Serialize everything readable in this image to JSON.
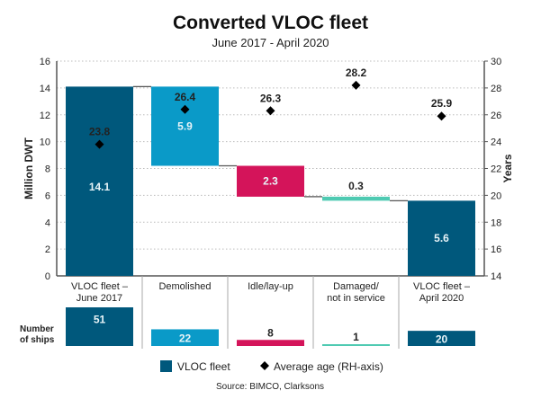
{
  "chart_data": {
    "type": "waterfall",
    "title": "Converted VLOC fleet",
    "subtitle": "June 2017 - April 2020",
    "categories": [
      "VLOC fleet –\nJune 2017",
      "Demolished",
      "Idle/lay-up",
      "Damaged/\nnot in service",
      "VLOC fleet –\nApril 2020"
    ],
    "series": [
      {
        "name": "VLOC fleet",
        "axis": "left",
        "unit": "Million DWT",
        "values": [
          14.1,
          -5.9,
          -2.3,
          -0.3,
          5.6
        ],
        "labels": [
          "14.1",
          "5.9",
          "2.3",
          "0.3",
          "5.6"
        ],
        "colors": [
          "#00587c",
          "#0a9ac8",
          "#d4145a",
          "#4fcab2",
          "#00587c"
        ]
      },
      {
        "name": "Average age (RH-axis)",
        "axis": "right",
        "unit": "Years",
        "values": [
          23.8,
          26.4,
          26.3,
          28.2,
          25.9
        ],
        "labels": [
          "23.8",
          "26.4",
          "26.3",
          "28.2",
          "25.9"
        ]
      }
    ],
    "ylabel": "Million DWT",
    "y2label": "Years",
    "ylim": [
      0,
      16
    ],
    "y2lim": [
      14,
      30
    ],
    "yticks": [
      "0",
      "2",
      "4",
      "6",
      "8",
      "10",
      "12",
      "14",
      "16"
    ],
    "y2ticks": [
      "14",
      "16",
      "18",
      "20",
      "22",
      "24",
      "26",
      "28",
      "30"
    ],
    "grid": true,
    "ships": {
      "label": "Number\nof ships",
      "values": [
        51,
        22,
        8,
        1,
        20
      ]
    },
    "legend": {
      "position": "bottom",
      "items": [
        "VLOC fleet",
        "Average age (RH-axis)"
      ]
    },
    "source": "Source: BIMCO, Clarksons"
  }
}
